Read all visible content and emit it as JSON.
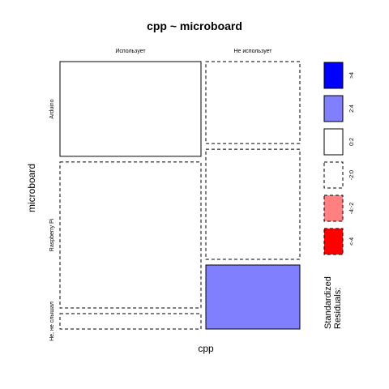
{
  "chart_data": {
    "type": "mosaic",
    "title": "cpp ~ microboard",
    "xlabel": "cpp",
    "ylabel": "microboard",
    "columns": [
      {
        "label": "Использует"
      },
      {
        "label": "Не использует"
      }
    ],
    "rows": [
      {
        "label": "Arduino"
      },
      {
        "label": "Raspberry Pi"
      },
      {
        "label": "Не, не слышал"
      }
    ],
    "column_proportions": [
      0.6,
      0.4
    ],
    "cells": [
      [
        {
          "proportion": 0.37,
          "residual_band": "0:2"
        },
        {
          "proportion": 0.57,
          "residual_band": "-2:0"
        },
        {
          "proportion": 0.06,
          "residual_band": "-2:0"
        }
      ],
      [
        {
          "proportion": 0.32,
          "residual_band": "-2:0"
        },
        {
          "proportion": 0.43,
          "residual_band": "-2:0"
        },
        {
          "proportion": 0.25,
          "residual_band": "2:4"
        }
      ]
    ],
    "legend": {
      "title": "Standardized Residuals:",
      "items": [
        {
          "label": ">4",
          "fill": "#0000FF",
          "dashed": false
        },
        {
          "label": "2:4",
          "fill": "#8080FF",
          "dashed": false
        },
        {
          "label": "0:2",
          "fill": "#FFFFFF",
          "dashed": false
        },
        {
          "label": "-2:0",
          "fill": "#FFFFFF",
          "dashed": true
        },
        {
          "label": "-4:-2",
          "fill": "#FF8080",
          "dashed": true
        },
        {
          "label": "<-4",
          "fill": "#FF0000",
          "dashed": true
        }
      ]
    }
  }
}
